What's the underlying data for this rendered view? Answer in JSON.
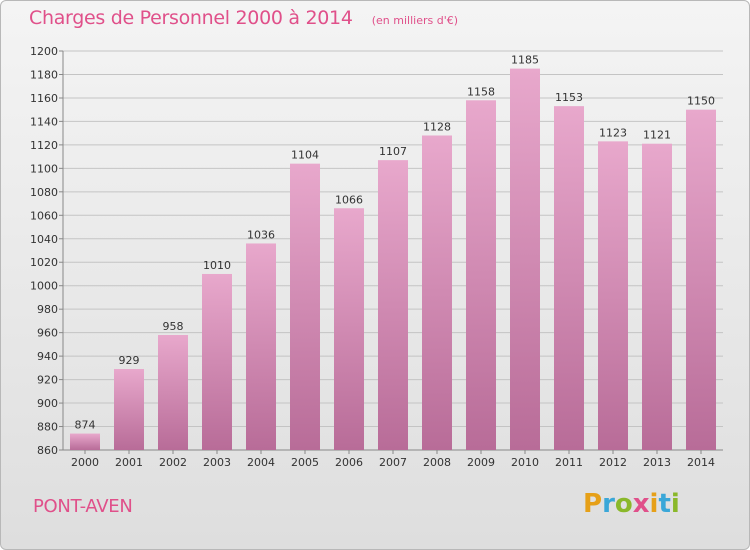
{
  "title": "Charges de Personnel 2000 à 2014",
  "subtitle": "(en milliers d'€)",
  "town": "PONT-AVEN",
  "logo": {
    "letters": [
      "P",
      "r",
      "o",
      "x",
      "i",
      "t",
      "i"
    ],
    "colors": [
      "#e6a018",
      "#3aa7d8",
      "#8ab82a",
      "#e0508a",
      "#e6a018",
      "#3aa7d8",
      "#8ab82a"
    ]
  },
  "colors": {
    "accent": "#e0508a",
    "bar_top": "#e8a8cc",
    "bar_bottom": "#b86c98"
  },
  "chart_data": {
    "type": "bar",
    "title": "Charges de Personnel 2000 à 2014",
    "subtitle": "(en milliers d'€)",
    "xlabel": "",
    "ylabel": "",
    "categories": [
      "2000",
      "2001",
      "2002",
      "2003",
      "2004",
      "2005",
      "2006",
      "2007",
      "2008",
      "2009",
      "2010",
      "2011",
      "2012",
      "2013",
      "2014"
    ],
    "values": [
      874,
      929,
      958,
      1010,
      1036,
      1104,
      1066,
      1107,
      1128,
      1158,
      1185,
      1153,
      1123,
      1121,
      1150
    ],
    "ylim": [
      860,
      1200
    ],
    "yticks": [
      860,
      880,
      900,
      920,
      940,
      960,
      980,
      1000,
      1020,
      1040,
      1060,
      1080,
      1100,
      1120,
      1140,
      1160,
      1180,
      1200
    ],
    "grid": true
  }
}
